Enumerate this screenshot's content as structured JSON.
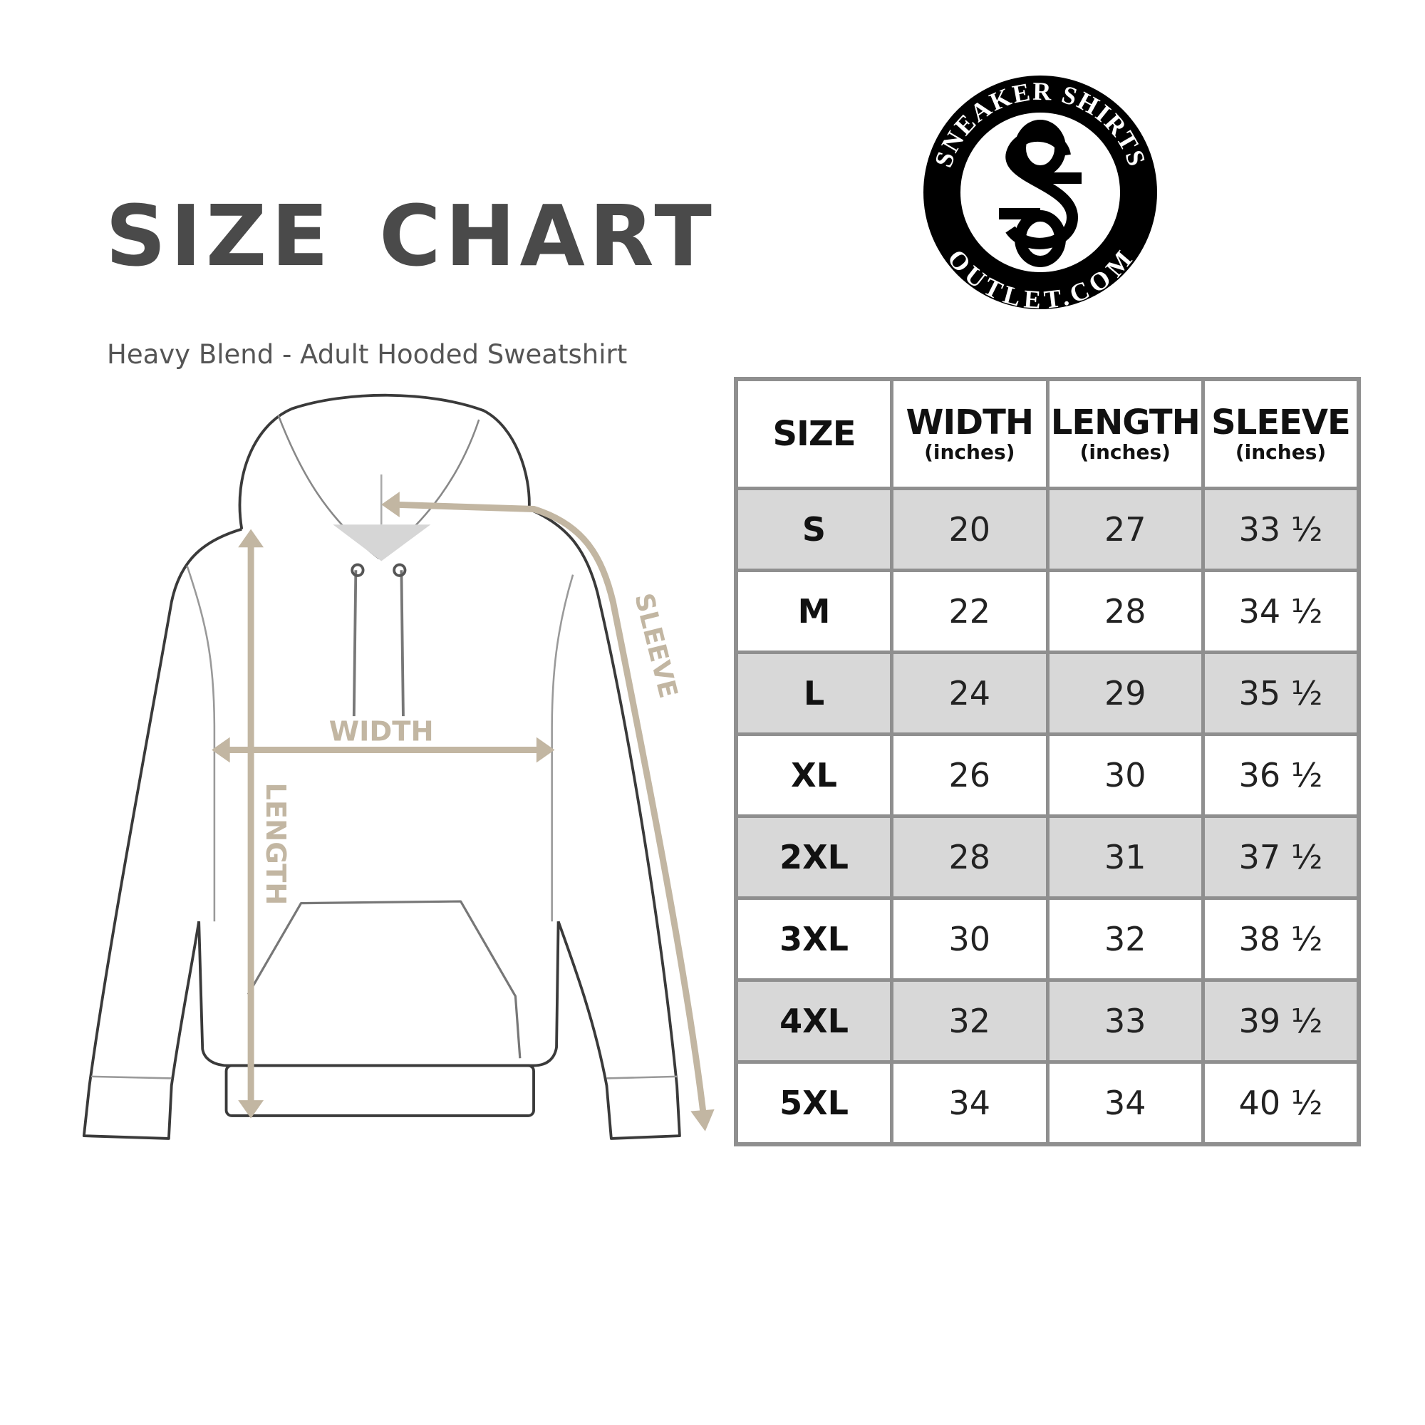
{
  "title": "SIZE CHART",
  "subtitle": "Heavy Blend - Adult Hooded Sweatshirt",
  "logo": {
    "top_text": "SNEAKER SHIRTS",
    "bottom_text": "OUTLET.COM"
  },
  "diagram": {
    "width_label": "WIDTH",
    "length_label": "LENGTH",
    "sleeve_label": "SLEEVE",
    "arrow_color": "#c2b6a2"
  },
  "table": {
    "headers": [
      {
        "main": "SIZE",
        "sub": ""
      },
      {
        "main": "WIDTH",
        "sub": "(inches)"
      },
      {
        "main": "LENGTH",
        "sub": "(inches)"
      },
      {
        "main": "SLEEVE",
        "sub": "(inches)"
      }
    ],
    "rows": [
      [
        "S",
        "20",
        "27",
        "33 ½"
      ],
      [
        "M",
        "22",
        "28",
        "34 ½"
      ],
      [
        "L",
        "24",
        "29",
        "35 ½"
      ],
      [
        "XL",
        "26",
        "30",
        "36 ½"
      ],
      [
        "2XL",
        "28",
        "31",
        "37 ½"
      ],
      [
        "3XL",
        "30",
        "32",
        "38 ½"
      ],
      [
        "4XL",
        "32",
        "33",
        "39 ½"
      ],
      [
        "5XL",
        "34",
        "34",
        "40 ½"
      ]
    ],
    "shade_color": "#d8d8d8",
    "border_color": "#8f8f8f"
  }
}
